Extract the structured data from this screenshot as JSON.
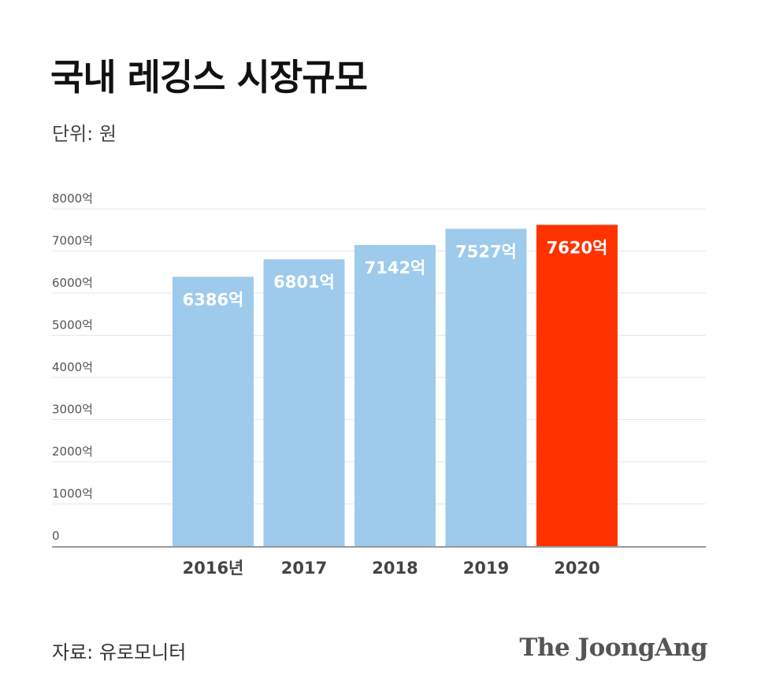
{
  "title": "국내 레깅스 시장규모",
  "unit_label": "단위: 원",
  "source": "자료: 유로모니터",
  "brand": "The JoongAng",
  "colors": {
    "bar": "#9ecbec",
    "highlight": "#ff3300",
    "grid": "#e6e6e6",
    "axis": "#999999",
    "tick_text": "#555555",
    "xtick_text": "#444444",
    "bar_label": "#ffffff"
  },
  "chart_data": {
    "type": "bar",
    "categories": [
      "2016년",
      "2017",
      "2018",
      "2019",
      "2020"
    ],
    "values": [
      6386,
      6801,
      7142,
      7527,
      7620
    ],
    "data_labels": [
      "6386억",
      "6801억",
      "7142억",
      "7527억",
      "7620억"
    ],
    "highlight_index": 4,
    "ylim": [
      0,
      8000
    ],
    "yticks": [
      0,
      1000,
      2000,
      3000,
      4000,
      5000,
      6000,
      7000,
      8000
    ],
    "ytick_labels": [
      "0",
      "1000억",
      "2000억",
      "3000억",
      "4000억",
      "5000억",
      "6000억",
      "7000억",
      "8000억"
    ],
    "grid": true
  }
}
